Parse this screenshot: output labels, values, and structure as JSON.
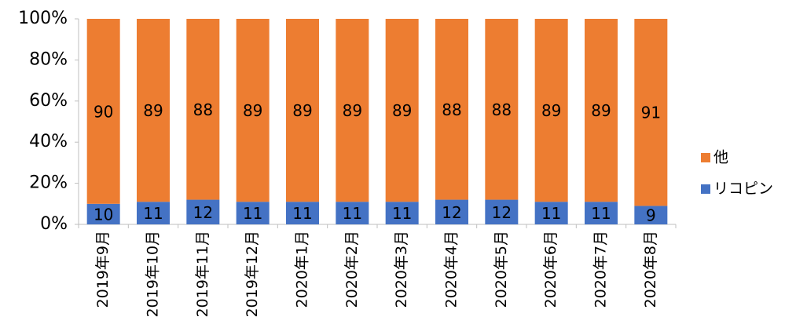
{
  "chart_data": {
    "type": "stacked_bar",
    "categories": [
      "2019年9月",
      "2019年10月",
      "2019年11月",
      "2019年12月",
      "2020年1月",
      "2020年2月",
      "2020年3月",
      "2020年4月",
      "2020年5月",
      "2020年6月",
      "2020年7月",
      "2020年8月"
    ],
    "series": [
      {
        "name": "リコピン",
        "color": "#4472c4",
        "values": [
          10,
          11,
          12,
          11,
          11,
          11,
          11,
          12,
          12,
          11,
          11,
          9
        ]
      },
      {
        "name": "他",
        "color": "#ed7d31",
        "values": [
          90,
          89,
          88,
          89,
          89,
          89,
          89,
          88,
          88,
          89,
          89,
          91
        ]
      }
    ],
    "ylim": [
      0,
      100
    ],
    "yticks": [
      {
        "value": 0,
        "label": "0%"
      },
      {
        "value": 20,
        "label": "20%"
      },
      {
        "value": 40,
        "label": "40%"
      },
      {
        "value": 60,
        "label": "60%"
      },
      {
        "value": 80,
        "label": "80%"
      },
      {
        "value": 100,
        "label": "100%"
      }
    ],
    "legend": "right"
  }
}
